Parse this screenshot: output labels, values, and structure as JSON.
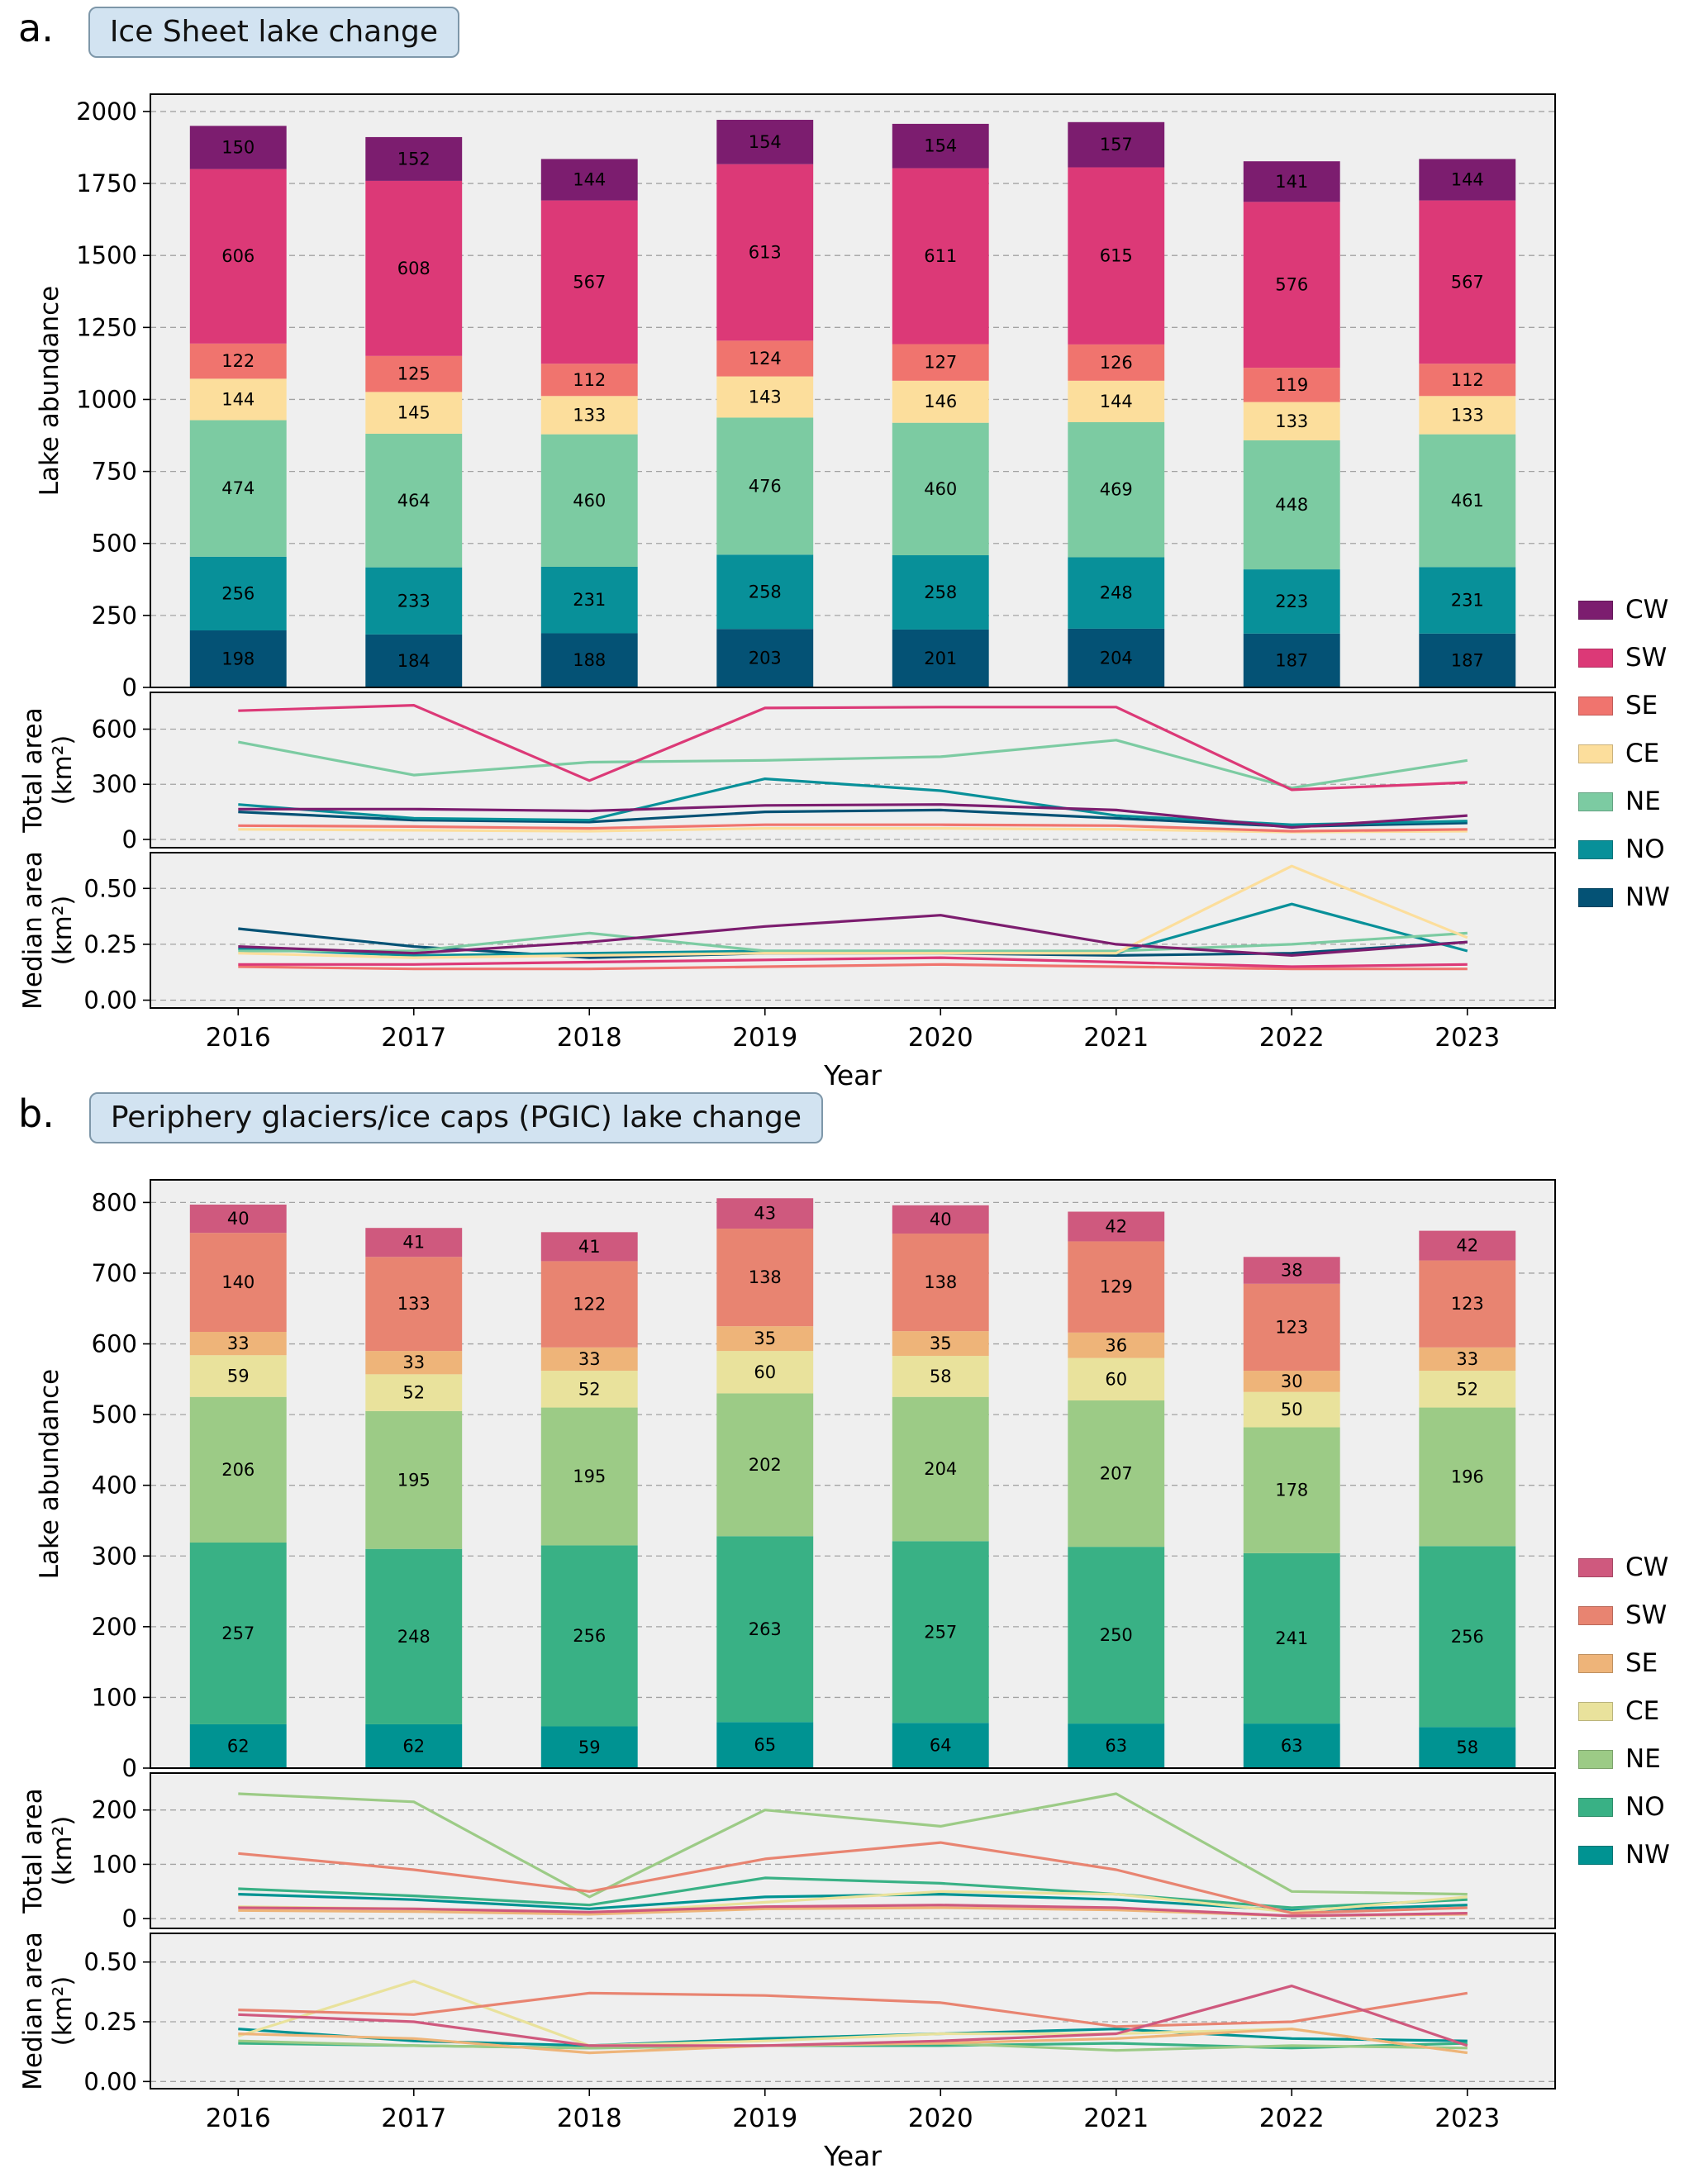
{
  "style": {
    "plot_bg": "#efefef",
    "grid_color": "#a3a3a3",
    "frame_color": "#000000",
    "title_box_bg": "#d2e3f1",
    "title_box_border": "#7e97a9",
    "bar_label_color": "#111111"
  },
  "panels": [
    {
      "id": "a",
      "letter": "a.",
      "title": "Ice Sheet lake change",
      "xlabel": "Year",
      "years": [
        2016,
        2017,
        2018,
        2019,
        2020,
        2021,
        2022,
        2023
      ],
      "legend": [
        {
          "label": "CW",
          "color": "#7c1d6f"
        },
        {
          "label": "SW",
          "color": "#dc3977"
        },
        {
          "label": "SE",
          "color": "#f0746e"
        },
        {
          "label": "CE",
          "color": "#fcde9c"
        },
        {
          "label": "NE",
          "color": "#7ccba2"
        },
        {
          "label": "NO",
          "color": "#089099"
        },
        {
          "label": "NW",
          "color": "#045275"
        }
      ]
    },
    {
      "id": "b",
      "letter": "b.",
      "title": "Periphery glaciers/ice caps (PGIC) lake change",
      "xlabel": "Year",
      "years": [
        2016,
        2017,
        2018,
        2019,
        2020,
        2021,
        2022,
        2023
      ],
      "legend": [
        {
          "label": "CW",
          "color": "#cf597e"
        },
        {
          "label": "SW",
          "color": "#e88471"
        },
        {
          "label": "SE",
          "color": "#eeb479"
        },
        {
          "label": "CE",
          "color": "#e9e29c"
        },
        {
          "label": "NE",
          "color": "#9ccb86"
        },
        {
          "label": "NO",
          "color": "#39b185"
        },
        {
          "label": "NW",
          "color": "#009392"
        }
      ]
    }
  ],
  "chart_data": [
    {
      "id": "a-abundance",
      "panel": "a",
      "slot": "bars",
      "type": "bar",
      "stacked": true,
      "ylabel": "Lake abundance",
      "ylabel_offset": 112,
      "ylim": [
        0,
        2000
      ],
      "yticks": [
        0,
        250,
        500,
        750,
        1000,
        1250,
        1500,
        1750,
        2000
      ],
      "x": [
        2016,
        2017,
        2018,
        2019,
        2020,
        2021,
        2022,
        2023
      ],
      "series": [
        {
          "name": "NW",
          "color": "#045275",
          "values": [
            198,
            184,
            188,
            203,
            201,
            204,
            187,
            187
          ]
        },
        {
          "name": "NO",
          "color": "#089099",
          "values": [
            256,
            233,
            231,
            258,
            258,
            248,
            223,
            231
          ]
        },
        {
          "name": "NE",
          "color": "#7ccba2",
          "values": [
            474,
            464,
            460,
            476,
            460,
            469,
            448,
            461
          ]
        },
        {
          "name": "CE",
          "color": "#fcde9c",
          "values": [
            144,
            145,
            133,
            143,
            146,
            144,
            133,
            133
          ]
        },
        {
          "name": "SE",
          "color": "#f0746e",
          "values": [
            122,
            125,
            112,
            124,
            127,
            126,
            119,
            112
          ]
        },
        {
          "name": "SW",
          "color": "#dc3977",
          "values": [
            606,
            608,
            567,
            613,
            611,
            615,
            576,
            567
          ]
        },
        {
          "name": "CW",
          "color": "#7c1d6f",
          "values": [
            150,
            152,
            144,
            154,
            154,
            157,
            141,
            144
          ]
        }
      ]
    },
    {
      "id": "a-total-area",
      "panel": "a",
      "slot": "total",
      "type": "line",
      "ylabel": "Total area|(km²)",
      "ylabel_offset": 132,
      "ylim": [
        0,
        750
      ],
      "yticks": [
        0,
        300,
        600
      ],
      "ytick_labels": [
        "0",
        "300",
        "600"
      ],
      "x": [
        2016,
        2017,
        2018,
        2019,
        2020,
        2021,
        2022,
        2023
      ],
      "series": [
        {
          "name": "NW",
          "color": "#045275",
          "values": [
            150,
            105,
            95,
            150,
            160,
            115,
            70,
            90
          ]
        },
        {
          "name": "NO",
          "color": "#089099",
          "values": [
            190,
            115,
            105,
            330,
            265,
            130,
            80,
            100
          ]
        },
        {
          "name": "NE",
          "color": "#7ccba2",
          "values": [
            530,
            350,
            420,
            430,
            450,
            540,
            280,
            430
          ]
        },
        {
          "name": "CE",
          "color": "#fcde9c",
          "values": [
            55,
            50,
            45,
            60,
            60,
            55,
            40,
            45
          ]
        },
        {
          "name": "SE",
          "color": "#f0746e",
          "values": [
            75,
            70,
            60,
            80,
            80,
            75,
            45,
            55
          ]
        },
        {
          "name": "SW",
          "color": "#dc3977",
          "values": [
            700,
            730,
            320,
            715,
            720,
            720,
            270,
            310
          ]
        },
        {
          "name": "CW",
          "color": "#7c1d6f",
          "values": [
            165,
            165,
            155,
            185,
            190,
            160,
            65,
            130
          ]
        }
      ]
    },
    {
      "id": "a-median-area",
      "panel": "a",
      "slot": "median",
      "type": "line",
      "ylabel": "Median area|(km²)",
      "ylabel_offset": 132,
      "ylim": [
        0,
        0.6
      ],
      "yticks": [
        0,
        0.25,
        0.5
      ],
      "ytick_labels": [
        "0.00",
        "0.25",
        "0.50"
      ],
      "x": [
        2016,
        2017,
        2018,
        2019,
        2020,
        2021,
        2022,
        2023
      ],
      "series": [
        {
          "name": "NW",
          "color": "#045275",
          "values": [
            0.32,
            0.24,
            0.19,
            0.21,
            0.21,
            0.2,
            0.21,
            0.26
          ]
        },
        {
          "name": "NO",
          "color": "#089099",
          "values": [
            0.23,
            0.2,
            0.21,
            0.22,
            0.22,
            0.21,
            0.43,
            0.22
          ]
        },
        {
          "name": "NE",
          "color": "#7ccba2",
          "values": [
            0.22,
            0.22,
            0.3,
            0.22,
            0.22,
            0.22,
            0.25,
            0.3
          ]
        },
        {
          "name": "CE",
          "color": "#fcde9c",
          "values": [
            0.21,
            0.19,
            0.2,
            0.21,
            0.21,
            0.21,
            0.6,
            0.28
          ]
        },
        {
          "name": "SE",
          "color": "#f0746e",
          "values": [
            0.15,
            0.14,
            0.14,
            0.15,
            0.16,
            0.15,
            0.14,
            0.14
          ]
        },
        {
          "name": "SW",
          "color": "#dc3977",
          "values": [
            0.16,
            0.16,
            0.17,
            0.18,
            0.19,
            0.17,
            0.15,
            0.16
          ]
        },
        {
          "name": "CW",
          "color": "#7c1d6f",
          "values": [
            0.24,
            0.21,
            0.26,
            0.33,
            0.38,
            0.25,
            0.2,
            0.26
          ]
        }
      ]
    },
    {
      "id": "b-abundance",
      "panel": "b",
      "slot": "bars",
      "type": "bar",
      "stacked": true,
      "ylabel": "Lake abundance",
      "ylabel_offset": 112,
      "ylim": [
        0,
        800
      ],
      "yticks": [
        0,
        100,
        200,
        300,
        400,
        500,
        600,
        700,
        800
      ],
      "x": [
        2016,
        2017,
        2018,
        2019,
        2020,
        2021,
        2022,
        2023
      ],
      "series": [
        {
          "name": "NW",
          "color": "#009392",
          "values": [
            62,
            62,
            59,
            65,
            64,
            63,
            63,
            58
          ]
        },
        {
          "name": "NO",
          "color": "#39b185",
          "values": [
            257,
            248,
            256,
            263,
            257,
            250,
            241,
            256
          ]
        },
        {
          "name": "NE",
          "color": "#9ccb86",
          "values": [
            206,
            195,
            195,
            202,
            204,
            207,
            178,
            196
          ]
        },
        {
          "name": "CE",
          "color": "#e9e29c",
          "values": [
            59,
            52,
            52,
            60,
            58,
            60,
            50,
            52
          ]
        },
        {
          "name": "SE",
          "color": "#eeb479",
          "values": [
            33,
            33,
            33,
            35,
            35,
            36,
            30,
            33
          ]
        },
        {
          "name": "SW",
          "color": "#e88471",
          "values": [
            140,
            133,
            122,
            138,
            138,
            129,
            123,
            123
          ]
        },
        {
          "name": "CW",
          "color": "#cf597e",
          "values": [
            40,
            41,
            41,
            43,
            40,
            42,
            38,
            42
          ]
        }
      ]
    },
    {
      "id": "b-total-area",
      "panel": "b",
      "slot": "total",
      "type": "line",
      "ylabel": "Total area|(km²)",
      "ylabel_offset": 132,
      "ylim": [
        0,
        250
      ],
      "yticks": [
        0,
        100,
        200
      ],
      "ytick_labels": [
        "0",
        "100",
        "200"
      ],
      "x": [
        2016,
        2017,
        2018,
        2019,
        2020,
        2021,
        2022,
        2023
      ],
      "series": [
        {
          "name": "NW",
          "color": "#009392",
          "values": [
            45,
            35,
            18,
            40,
            45,
            35,
            15,
            25
          ]
        },
        {
          "name": "NO",
          "color": "#39b185",
          "values": [
            55,
            42,
            25,
            75,
            65,
            45,
            20,
            35
          ]
        },
        {
          "name": "NE",
          "color": "#9ccb86",
          "values": [
            230,
            215,
            40,
            200,
            170,
            230,
            50,
            45
          ]
        },
        {
          "name": "CE",
          "color": "#e9e29c",
          "values": [
            22,
            18,
            10,
            30,
            50,
            45,
            12,
            40
          ]
        },
        {
          "name": "SE",
          "color": "#eeb479",
          "values": [
            15,
            13,
            8,
            18,
            20,
            16,
            5,
            8
          ]
        },
        {
          "name": "SW",
          "color": "#e88471",
          "values": [
            120,
            90,
            50,
            110,
            140,
            90,
            10,
            20
          ]
        },
        {
          "name": "CW",
          "color": "#cf597e",
          "values": [
            20,
            18,
            12,
            22,
            25,
            20,
            5,
            10
          ]
        }
      ]
    },
    {
      "id": "b-median-area",
      "panel": "b",
      "slot": "median",
      "type": "line",
      "ylabel": "Median area|(km²)",
      "ylabel_offset": 132,
      "ylim": [
        0,
        0.6
      ],
      "yticks": [
        0,
        0.25,
        0.5
      ],
      "ytick_labels": [
        "0.00",
        "0.25",
        "0.50"
      ],
      "x": [
        2016,
        2017,
        2018,
        2019,
        2020,
        2021,
        2022,
        2023
      ],
      "series": [
        {
          "name": "NW",
          "color": "#009392",
          "values": [
            0.22,
            0.17,
            0.15,
            0.18,
            0.2,
            0.22,
            0.18,
            0.17
          ]
        },
        {
          "name": "NO",
          "color": "#39b185",
          "values": [
            0.16,
            0.15,
            0.14,
            0.15,
            0.15,
            0.16,
            0.14,
            0.16
          ]
        },
        {
          "name": "NE",
          "color": "#9ccb86",
          "values": [
            0.17,
            0.15,
            0.14,
            0.15,
            0.16,
            0.13,
            0.15,
            0.14
          ]
        },
        {
          "name": "CE",
          "color": "#e9e29c",
          "values": [
            0.19,
            0.42,
            0.15,
            0.17,
            0.2,
            0.2,
            0.22,
            0.12
          ]
        },
        {
          "name": "SE",
          "color": "#eeb479",
          "values": [
            0.2,
            0.18,
            0.12,
            0.15,
            0.16,
            0.18,
            0.22,
            0.12
          ]
        },
        {
          "name": "SW",
          "color": "#e88471",
          "values": [
            0.3,
            0.28,
            0.37,
            0.36,
            0.33,
            0.23,
            0.25,
            0.37
          ]
        },
        {
          "name": "CW",
          "color": "#cf597e",
          "values": [
            0.28,
            0.25,
            0.15,
            0.15,
            0.17,
            0.2,
            0.4,
            0.15
          ]
        }
      ]
    }
  ]
}
